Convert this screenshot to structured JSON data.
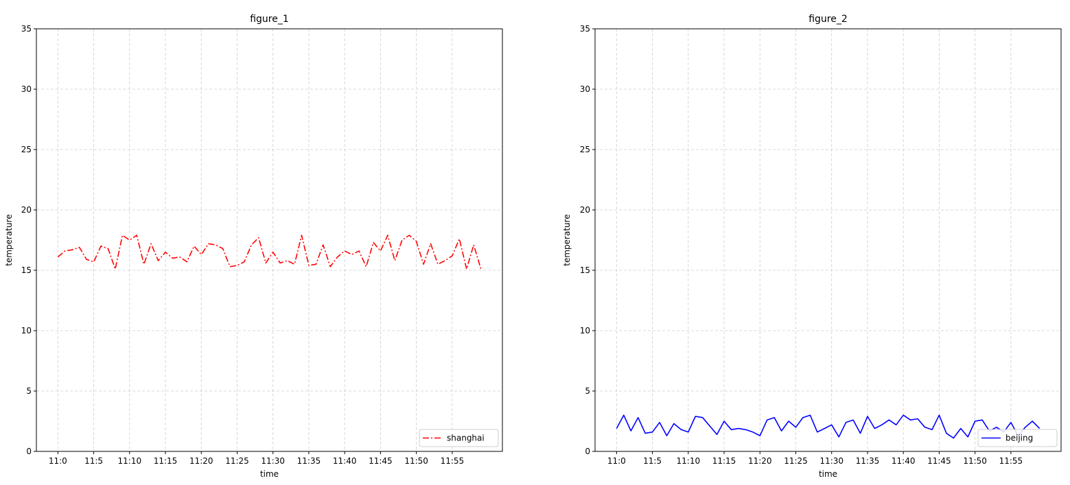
{
  "chart_data": [
    {
      "type": "line",
      "title": "figure_1",
      "xlabel": "time",
      "ylabel": "temperature",
      "ylim": [
        0,
        35
      ],
      "yticks": [
        0,
        5,
        10,
        15,
        20,
        25,
        30,
        35
      ],
      "xlim": [
        -3,
        62
      ],
      "xtick_positions": [
        0,
        5,
        10,
        15,
        20,
        25,
        30,
        35,
        40,
        45,
        50,
        55
      ],
      "xtick_labels": [
        "11:0",
        "11:5",
        "11:10",
        "11:15",
        "11:20",
        "11:25",
        "11:30",
        "11:35",
        "11:40",
        "11:45",
        "11:50",
        "11:55"
      ],
      "grid": true,
      "legend_position": "lower-right",
      "series": [
        {
          "name": "shanghai",
          "color": "#ff0000",
          "linestyle": "dashdot",
          "x": [
            0,
            1,
            2,
            3,
            4,
            5,
            6,
            7,
            8,
            9,
            10,
            11,
            12,
            13,
            14,
            15,
            16,
            17,
            18,
            19,
            20,
            21,
            22,
            23,
            24,
            25,
            26,
            27,
            28,
            29,
            30,
            31,
            32,
            33,
            34,
            35,
            36,
            37,
            38,
            39,
            40,
            41,
            42,
            43,
            44,
            45,
            46,
            47,
            48,
            49,
            50,
            51,
            52,
            53,
            54,
            55,
            56,
            57,
            58,
            59
          ],
          "values": [
            16.1,
            16.6,
            16.7,
            16.9,
            15.9,
            15.7,
            17.0,
            16.8,
            15.1,
            17.9,
            17.5,
            17.9,
            15.5,
            17.2,
            15.8,
            16.5,
            16.0,
            16.1,
            15.7,
            17.0,
            16.3,
            17.2,
            17.1,
            16.8,
            15.3,
            15.4,
            15.7,
            17.1,
            17.7,
            15.6,
            16.5,
            15.6,
            15.8,
            15.5,
            17.9,
            15.4,
            15.5,
            17.1,
            15.3,
            16.1,
            16.6,
            16.3,
            16.6,
            15.3,
            17.3,
            16.6,
            17.9,
            15.8,
            17.5,
            17.9,
            17.4,
            15.5,
            17.2,
            15.5,
            15.8,
            16.2,
            17.6,
            15.1,
            17.1,
            15.1
          ]
        }
      ]
    },
    {
      "type": "line",
      "title": "figure_2",
      "xlabel": "time",
      "ylabel": "temperature",
      "ylim": [
        0,
        35
      ],
      "yticks": [
        0,
        5,
        10,
        15,
        20,
        25,
        30,
        35
      ],
      "xlim": [
        -3,
        62
      ],
      "xtick_positions": [
        0,
        5,
        10,
        15,
        20,
        25,
        30,
        35,
        40,
        45,
        50,
        55
      ],
      "xtick_labels": [
        "11:0",
        "11:5",
        "11:10",
        "11:15",
        "11:20",
        "11:25",
        "11:30",
        "11:35",
        "11:40",
        "11:45",
        "11:50",
        "11:55"
      ],
      "grid": true,
      "legend_position": "lower-right",
      "series": [
        {
          "name": "beijing",
          "color": "#0000ff",
          "linestyle": "solid",
          "x": [
            0,
            1,
            2,
            3,
            4,
            5,
            6,
            7,
            8,
            9,
            10,
            11,
            12,
            13,
            14,
            15,
            16,
            17,
            18,
            19,
            20,
            21,
            22,
            23,
            24,
            25,
            26,
            27,
            28,
            29,
            30,
            31,
            32,
            33,
            34,
            35,
            36,
            37,
            38,
            39,
            40,
            41,
            42,
            43,
            44,
            45,
            46,
            47,
            48,
            49,
            50,
            51,
            52,
            53,
            54,
            55,
            56,
            57,
            58,
            59
          ],
          "values": [
            1.9,
            3.0,
            1.7,
            2.8,
            1.5,
            1.6,
            2.4,
            1.3,
            2.3,
            1.8,
            1.6,
            2.9,
            2.8,
            2.1,
            1.4,
            2.5,
            1.8,
            1.9,
            1.8,
            1.6,
            1.3,
            2.6,
            2.8,
            1.7,
            2.5,
            2.0,
            2.8,
            3.0,
            1.6,
            1.9,
            2.2,
            1.2,
            2.4,
            2.6,
            1.5,
            2.9,
            1.9,
            2.2,
            2.6,
            2.2,
            3.0,
            2.6,
            2.7,
            2.0,
            1.8,
            3.0,
            1.5,
            1.1,
            1.9,
            1.2,
            2.5,
            2.6,
            1.7,
            2.0,
            1.6,
            2.4,
            1.3,
            2.0,
            2.5,
            1.9
          ]
        }
      ]
    }
  ]
}
